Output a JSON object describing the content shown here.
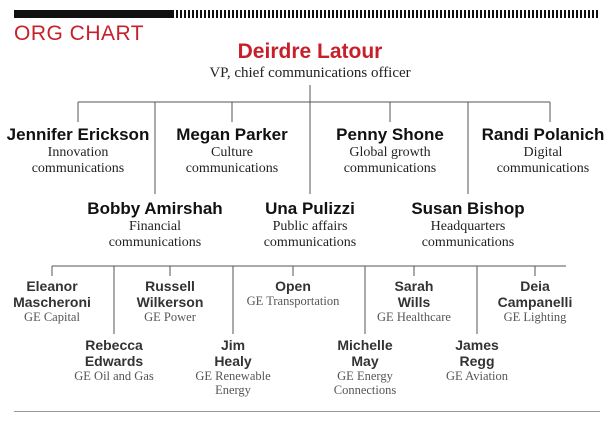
{
  "header": {
    "title": "ORG CHART"
  },
  "top": {
    "name": "Deirdre Latour",
    "role": "VP, chief communications officer"
  },
  "tier1": [
    {
      "name": "Jennifer Erickson",
      "role": [
        "Innovation",
        "communications"
      ]
    },
    {
      "name": "Megan Parker",
      "role": [
        "Culture",
        "communications"
      ]
    },
    {
      "name": "Penny Shone",
      "role": [
        "Global growth",
        "communications"
      ]
    },
    {
      "name": "Randi Polanich",
      "role": [
        "Digital",
        "communications"
      ]
    },
    {
      "name": "Bobby Amirshah",
      "role": [
        "Financial",
        "communications"
      ]
    },
    {
      "name": "Una Pulizzi",
      "role": [
        "Public affairs",
        "communications"
      ]
    },
    {
      "name": "Susan Bishop",
      "role": [
        "Headquarters",
        "communications"
      ]
    }
  ],
  "tier2": [
    {
      "name": [
        "Eleanor",
        "Mascheroni"
      ],
      "role": [
        "GE Capital"
      ]
    },
    {
      "name": [
        "Rebecca",
        "Edwards"
      ],
      "role": [
        "GE Oil and Gas"
      ]
    },
    {
      "name": [
        "Russell",
        "Wilkerson"
      ],
      "role": [
        "GE Power"
      ]
    },
    {
      "name": [
        "Jim",
        "Healy"
      ],
      "role": [
        "GE Renewable",
        "Energy"
      ]
    },
    {
      "name": [
        "Open"
      ],
      "role": [
        "GE Transportation"
      ]
    },
    {
      "name": [
        "Michelle",
        "May"
      ],
      "role": [
        "GE Energy",
        "Connections"
      ]
    },
    {
      "name": [
        "Sarah",
        "Wills"
      ],
      "role": [
        "GE Healthcare"
      ]
    },
    {
      "name": [
        "James",
        "Regg"
      ],
      "role": [
        "GE Aviation"
      ]
    },
    {
      "name": [
        "Deia",
        "Campanelli"
      ],
      "role": [
        "GE Lighting"
      ]
    }
  ]
}
